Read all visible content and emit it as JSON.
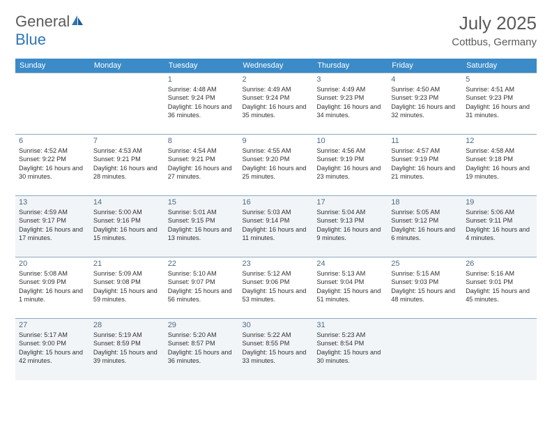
{
  "brand": {
    "part1": "General",
    "part2": "Blue"
  },
  "title": "July 2025",
  "location": "Cottbus, Germany",
  "colors": {
    "header_bg": "#3b8bc8",
    "header_text": "#ffffff",
    "border": "#8aa8c0",
    "daynum": "#4a6a88",
    "body_text": "#303030",
    "brand_gray": "#5a5a5a",
    "brand_blue": "#2e75b6",
    "shade_bg": "#f2f5f8"
  },
  "dayNames": [
    "Sunday",
    "Monday",
    "Tuesday",
    "Wednesday",
    "Thursday",
    "Friday",
    "Saturday"
  ],
  "weeks": [
    {
      "shaded": false,
      "days": [
        null,
        null,
        {
          "n": "1",
          "sunrise": "4:48 AM",
          "sunset": "9:24 PM",
          "daylight": "16 hours and 36 minutes."
        },
        {
          "n": "2",
          "sunrise": "4:49 AM",
          "sunset": "9:24 PM",
          "daylight": "16 hours and 35 minutes."
        },
        {
          "n": "3",
          "sunrise": "4:49 AM",
          "sunset": "9:23 PM",
          "daylight": "16 hours and 34 minutes."
        },
        {
          "n": "4",
          "sunrise": "4:50 AM",
          "sunset": "9:23 PM",
          "daylight": "16 hours and 32 minutes."
        },
        {
          "n": "5",
          "sunrise": "4:51 AM",
          "sunset": "9:23 PM",
          "daylight": "16 hours and 31 minutes."
        }
      ]
    },
    {
      "shaded": false,
      "days": [
        {
          "n": "6",
          "sunrise": "4:52 AM",
          "sunset": "9:22 PM",
          "daylight": "16 hours and 30 minutes."
        },
        {
          "n": "7",
          "sunrise": "4:53 AM",
          "sunset": "9:21 PM",
          "daylight": "16 hours and 28 minutes."
        },
        {
          "n": "8",
          "sunrise": "4:54 AM",
          "sunset": "9:21 PM",
          "daylight": "16 hours and 27 minutes."
        },
        {
          "n": "9",
          "sunrise": "4:55 AM",
          "sunset": "9:20 PM",
          "daylight": "16 hours and 25 minutes."
        },
        {
          "n": "10",
          "sunrise": "4:56 AM",
          "sunset": "9:19 PM",
          "daylight": "16 hours and 23 minutes."
        },
        {
          "n": "11",
          "sunrise": "4:57 AM",
          "sunset": "9:19 PM",
          "daylight": "16 hours and 21 minutes."
        },
        {
          "n": "12",
          "sunrise": "4:58 AM",
          "sunset": "9:18 PM",
          "daylight": "16 hours and 19 minutes."
        }
      ]
    },
    {
      "shaded": true,
      "days": [
        {
          "n": "13",
          "sunrise": "4:59 AM",
          "sunset": "9:17 PM",
          "daylight": "16 hours and 17 minutes."
        },
        {
          "n": "14",
          "sunrise": "5:00 AM",
          "sunset": "9:16 PM",
          "daylight": "16 hours and 15 minutes."
        },
        {
          "n": "15",
          "sunrise": "5:01 AM",
          "sunset": "9:15 PM",
          "daylight": "16 hours and 13 minutes."
        },
        {
          "n": "16",
          "sunrise": "5:03 AM",
          "sunset": "9:14 PM",
          "daylight": "16 hours and 11 minutes."
        },
        {
          "n": "17",
          "sunrise": "5:04 AM",
          "sunset": "9:13 PM",
          "daylight": "16 hours and 9 minutes."
        },
        {
          "n": "18",
          "sunrise": "5:05 AM",
          "sunset": "9:12 PM",
          "daylight": "16 hours and 6 minutes."
        },
        {
          "n": "19",
          "sunrise": "5:06 AM",
          "sunset": "9:11 PM",
          "daylight": "16 hours and 4 minutes."
        }
      ]
    },
    {
      "shaded": false,
      "days": [
        {
          "n": "20",
          "sunrise": "5:08 AM",
          "sunset": "9:09 PM",
          "daylight": "16 hours and 1 minute."
        },
        {
          "n": "21",
          "sunrise": "5:09 AM",
          "sunset": "9:08 PM",
          "daylight": "15 hours and 59 minutes."
        },
        {
          "n": "22",
          "sunrise": "5:10 AM",
          "sunset": "9:07 PM",
          "daylight": "15 hours and 56 minutes."
        },
        {
          "n": "23",
          "sunrise": "5:12 AM",
          "sunset": "9:06 PM",
          "daylight": "15 hours and 53 minutes."
        },
        {
          "n": "24",
          "sunrise": "5:13 AM",
          "sunset": "9:04 PM",
          "daylight": "15 hours and 51 minutes."
        },
        {
          "n": "25",
          "sunrise": "5:15 AM",
          "sunset": "9:03 PM",
          "daylight": "15 hours and 48 minutes."
        },
        {
          "n": "26",
          "sunrise": "5:16 AM",
          "sunset": "9:01 PM",
          "daylight": "15 hours and 45 minutes."
        }
      ]
    },
    {
      "shaded": true,
      "days": [
        {
          "n": "27",
          "sunrise": "5:17 AM",
          "sunset": "9:00 PM",
          "daylight": "15 hours and 42 minutes."
        },
        {
          "n": "28",
          "sunrise": "5:19 AM",
          "sunset": "8:59 PM",
          "daylight": "15 hours and 39 minutes."
        },
        {
          "n": "29",
          "sunrise": "5:20 AM",
          "sunset": "8:57 PM",
          "daylight": "15 hours and 36 minutes."
        },
        {
          "n": "30",
          "sunrise": "5:22 AM",
          "sunset": "8:55 PM",
          "daylight": "15 hours and 33 minutes."
        },
        {
          "n": "31",
          "sunrise": "5:23 AM",
          "sunset": "8:54 PM",
          "daylight": "15 hours and 30 minutes."
        },
        null,
        null
      ]
    }
  ],
  "labels": {
    "sunrise": "Sunrise:",
    "sunset": "Sunset:",
    "daylight": "Daylight:"
  }
}
